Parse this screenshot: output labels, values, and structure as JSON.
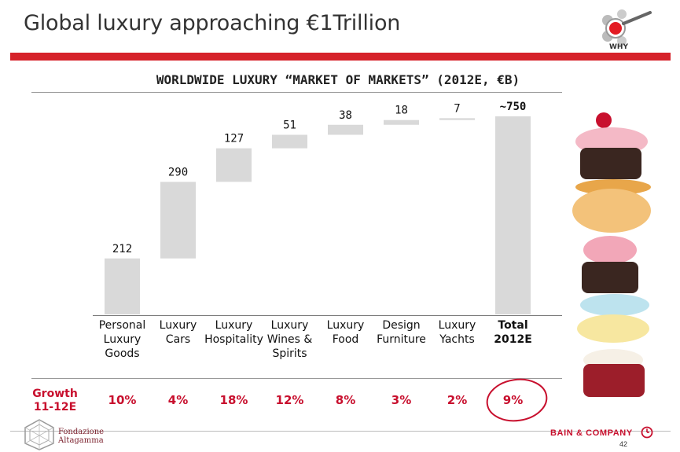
{
  "header": {
    "title": "Global luxury approaching €1Trillion",
    "why_label": "WHY"
  },
  "chart_data": {
    "type": "bar",
    "subtitle": "WORLDWIDE LUXURY “MARKET OF MARKETS” (2012E, €B)",
    "categories": [
      [
        "Personal",
        "Luxury",
        "Goods"
      ],
      [
        "Luxury",
        "Cars"
      ],
      [
        "Luxury",
        "Hospitality"
      ],
      [
        "Luxury",
        "Wines &",
        "Spirits"
      ],
      [
        "Luxury",
        "Food"
      ],
      [
        "Design",
        "Furniture"
      ],
      [
        "Luxury",
        "Yachts"
      ],
      [
        "Total",
        "2012E"
      ]
    ],
    "values": [
      212,
      290,
      127,
      51,
      38,
      18,
      7,
      750
    ],
    "value_labels": [
      "212",
      "290",
      "127",
      "51",
      "38",
      "18",
      "7",
      "~750"
    ],
    "waterfall": true,
    "bar_color": "#d9d9d9",
    "ylim": [
      0,
      750
    ]
  },
  "growth": {
    "label_lines": [
      "Growth",
      "11-12E"
    ],
    "values": [
      "10%",
      "4%",
      "18%",
      "12%",
      "8%",
      "3%",
      "2%",
      "9%"
    ],
    "highlight_color": "#c8102e"
  },
  "footer": {
    "org_lines": [
      "Fondazione",
      "Altagamma"
    ],
    "brand": "BAIN & COMPANY",
    "page": "42"
  }
}
